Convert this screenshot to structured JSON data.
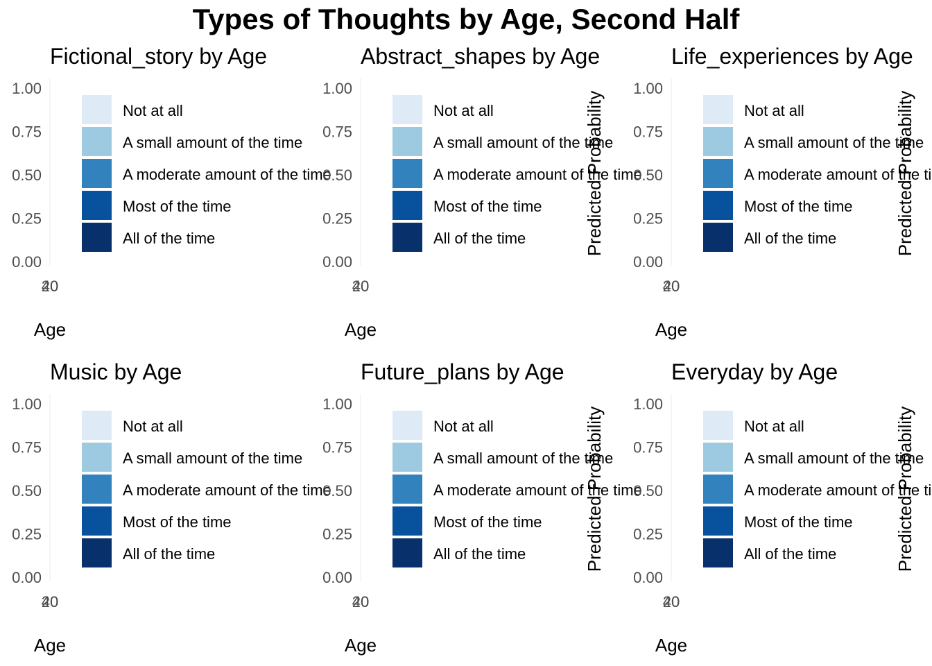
{
  "title": "Types of Thoughts by Age, Second Half",
  "colors": [
    "#deebf7",
    "#9ecae1",
    "#3182bd",
    "#08519c",
    "#08306b"
  ],
  "legend_labels": [
    "Not at all",
    "A small amount of the time",
    "A moderate amount of the time",
    "Most of the time",
    "All of the time"
  ],
  "y_ticks": [
    "1.00",
    "0.75",
    "0.50",
    "0.25",
    "0.00"
  ],
  "x_tick_labels": [
    "40",
    "20"
  ],
  "x_axis_label": "Age",
  "y_axis_label": "Predicted Probability",
  "chart_data": [
    {
      "type": "area",
      "title": "Fictional_story by Age",
      "xlabel": "Age",
      "ylabel": "",
      "ylim": [
        0,
        1
      ],
      "series": []
    },
    {
      "type": "area",
      "title": "Abstract_shapes by Age",
      "xlabel": "Age",
      "ylabel": "Predicted Probability",
      "ylim": [
        0,
        1
      ],
      "series": []
    },
    {
      "type": "area",
      "title": "Life_experiences by Age",
      "xlabel": "Age",
      "ylabel": "Predicted Probability",
      "ylim": [
        0,
        1
      ],
      "series": []
    },
    {
      "type": "area",
      "title": "Music by Age",
      "xlabel": "Age",
      "ylabel": "",
      "ylim": [
        0,
        1
      ],
      "series": []
    },
    {
      "type": "area",
      "title": "Future_plans by Age",
      "xlabel": "Age",
      "ylabel": "Predicted Probability",
      "ylim": [
        0,
        1
      ],
      "series": []
    },
    {
      "type": "area",
      "title": "Everyday by Age",
      "xlabel": "Age",
      "ylabel": "Predicted Probability",
      "ylim": [
        0,
        1
      ],
      "series": []
    }
  ]
}
